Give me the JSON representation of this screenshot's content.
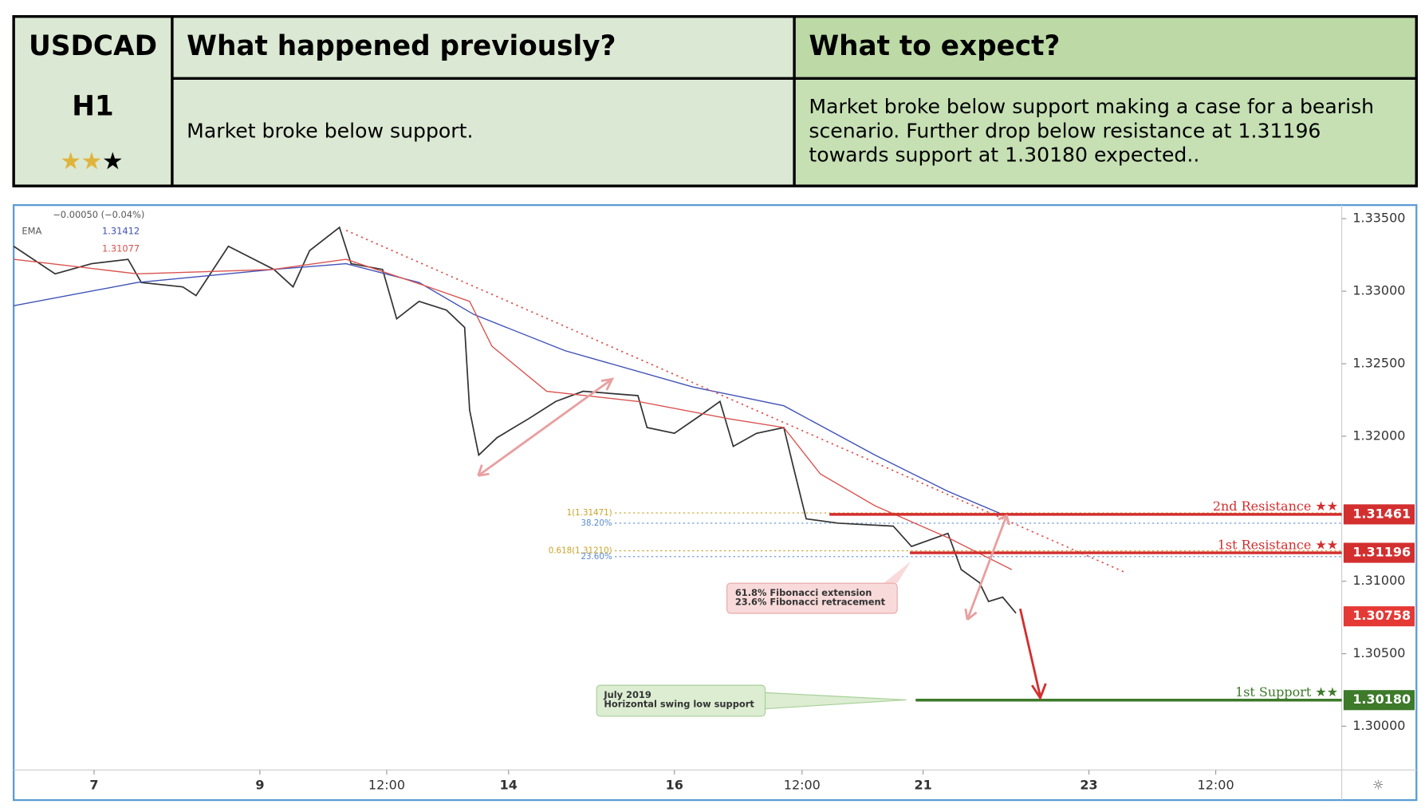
{
  "header": {
    "symbol": "USDCAD",
    "timeframe": "H1",
    "previous_title": "What happened previously?",
    "previous_text": "Market broke below support.",
    "expect_title": "What to expect?",
    "expect_lines": [
      "Market broke below support making a case for a bearish",
      "scenario. Further drop below resistance at 1.31196",
      "towards support at 1.30180 expected.."
    ]
  },
  "chart_data": {
    "type": "line",
    "legend": {
      "change": "−0.00050 (−0.04%)",
      "indicator": "EMA",
      "values": [
        {
          "text": "1.31412",
          "color": "#3f51b5"
        },
        {
          "text": "1.31077",
          "color": "#d9534f"
        }
      ]
    },
    "xlim": [
      -0.97,
      15.05
    ],
    "xticks": [
      {
        "value": 0,
        "label": "7"
      },
      {
        "value": 2,
        "label": "9"
      },
      {
        "value": 3.53,
        "label": "12:00"
      },
      {
        "value": 5,
        "label": "14"
      },
      {
        "value": 7,
        "label": "16"
      },
      {
        "value": 8.54,
        "label": "12:00"
      },
      {
        "value": 10,
        "label": "21"
      },
      {
        "value": 12,
        "label": "23"
      },
      {
        "value": 13.53,
        "label": "12:00"
      }
    ],
    "ylim": [
      1.29698,
      1.33594
    ],
    "yticks": [
      {
        "value": 1.335,
        "label": "1.33500"
      },
      {
        "value": 1.33,
        "label": "1.33000"
      },
      {
        "value": 1.325,
        "label": "1.32500"
      },
      {
        "value": 1.32,
        "label": "1.32000"
      },
      {
        "value": 1.31,
        "label": "1.31000"
      },
      {
        "value": 1.305,
        "label": "1.30500"
      },
      {
        "value": 1.3,
        "label": "1.30000"
      }
    ],
    "series": [
      {
        "color": "#333333",
        "x": [
          -0.97,
          -0.47,
          -0.03,
          0.41,
          0.57,
          1.07,
          1.23,
          1.62,
          2.17,
          2.4,
          2.6,
          2.96,
          3.1,
          3.48,
          3.65,
          3.92,
          4.25,
          4.47,
          4.53,
          4.64,
          4.86,
          5.24,
          5.57,
          5.9,
          6.56,
          6.67,
          7,
          7.33,
          7.55,
          7.71,
          7.99,
          8.32,
          8.43,
          8.59,
          8.98,
          9.64,
          9.86,
          10.3,
          10.46,
          10.68,
          10.79,
          10.96,
          11.12
        ],
        "values": [
          1.3331,
          1.3312,
          1.3319,
          1.3322,
          1.3306,
          1.3303,
          1.3297,
          1.3331,
          1.3315,
          1.3303,
          1.3328,
          1.3344,
          1.3319,
          1.3315,
          1.3281,
          1.3293,
          1.3287,
          1.3275,
          1.3218,
          1.3187,
          1.3199,
          1.3212,
          1.3224,
          1.3231,
          1.3228,
          1.3206,
          1.3202,
          1.3215,
          1.3224,
          1.3193,
          1.3202,
          1.3206,
          1.318,
          1.3143,
          1.314,
          1.3138,
          1.3124,
          1.3133,
          1.3108,
          1.3099,
          1.3086,
          1.3089,
          1.3078
        ]
      },
      {
        "color": "#3f51b5",
        "x": [
          -0.97,
          0.52,
          2.16,
          3.04,
          3.92,
          4.58,
          5.68,
          7.22,
          8.32,
          9.42,
          10.3,
          10.96
        ],
        "values": [
          1.329,
          1.3306,
          1.3315,
          1.3319,
          1.3306,
          1.3284,
          1.3259,
          1.3234,
          1.3221,
          1.3187,
          1.3162,
          1.3146
        ]
      },
      {
        "color": "#d9534f",
        "x": [
          -0.97,
          0.52,
          2.16,
          3.04,
          4.03,
          4.53,
          4.8,
          5.46,
          6.56,
          7.66,
          8.32,
          8.76,
          9.42,
          10.3,
          11.07
        ],
        "values": [
          1.3322,
          1.3312,
          1.3315,
          1.3322,
          1.3303,
          1.3293,
          1.3262,
          1.3231,
          1.3224,
          1.3212,
          1.3206,
          1.3174,
          1.3152,
          1.313,
          1.3108
        ]
      }
    ],
    "trendline": {
      "color": "#d9534f",
      "x": [
        3.04,
        12.44
      ],
      "values": [
        1.3342,
        1.3106
      ]
    },
    "levels": [
      {
        "name": "2nd Resistance ★★",
        "price": {
          "value": 1.31461,
          "label": "1.31461"
        },
        "from": 8.87,
        "color": "#d32f2f"
      },
      {
        "name": "1st Resistance ★★",
        "price": {
          "value": 1.31196,
          "label": "1.31196"
        },
        "from": 9.84,
        "color": "#d32f2f"
      },
      {
        "name": "1st Support ★★",
        "price": {
          "value": 1.3018,
          "label": "1.30180"
        },
        "from": 9.91,
        "color": "#3d7a2a"
      }
    ],
    "current_price": {
      "value": 1.30758,
      "label": "1.30758",
      "color": "#e53935"
    },
    "fib_levels": [
      {
        "label": "1(1.31471)",
        "value": 1.31471,
        "color": "#c9a227"
      },
      {
        "label": "38.20%",
        "value": 1.314,
        "color": "#5b8bd0"
      },
      {
        "label": "0.618(1.31210)",
        "value": 1.3121,
        "color": "#c9a227"
      },
      {
        "label": "23.60%",
        "value": 1.3117,
        "color": "#5b8bd0"
      }
    ],
    "annotations": [
      {
        "lines": [
          "61.8% Fibonacci extension",
          "23.6% Fibonacci retracement"
        ]
      },
      {
        "lines": [
          "July 2019",
          "Horizontal swing low support"
        ]
      }
    ]
  }
}
